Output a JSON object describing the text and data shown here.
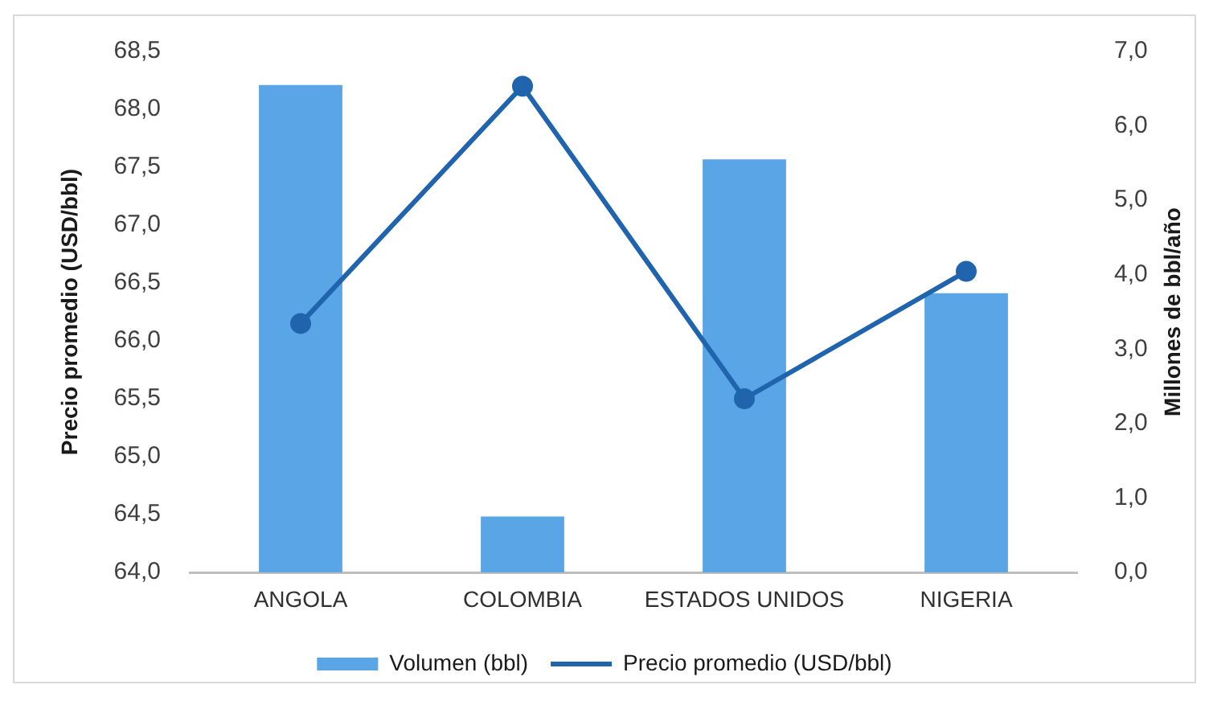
{
  "chart_data": {
    "type": "bar",
    "categories": [
      "ANGOLA",
      "COLOMBIA",
      "ESTADOS UNIDOS",
      "NIGERIA"
    ],
    "series": [
      {
        "name": "Volumen (bbl)",
        "axis": "y2",
        "color": "#5aa5e6",
        "values": [
          6.55,
          0.75,
          5.55,
          3.75
        ]
      },
      {
        "name": "Precio promedio (USD/bbl)",
        "type": "line",
        "color": "#1f64ad",
        "values": [
          66.15,
          68.2,
          65.5,
          66.6
        ]
      }
    ],
    "ylabel": "Precio promedio (USD/bbl)",
    "y2label": "Millones de bbl/año",
    "ylim": [
      64,
      68.5
    ],
    "yticks": [
      {
        "value": 64,
        "label": "64,0"
      },
      {
        "value": 64.5,
        "label": "64,5"
      },
      {
        "value": 65,
        "label": "65,0"
      },
      {
        "value": 65.5,
        "label": "65,5"
      },
      {
        "value": 66,
        "label": "66,0"
      },
      {
        "value": 66.5,
        "label": "66,5"
      },
      {
        "value": 67,
        "label": "67,0"
      },
      {
        "value": 67.5,
        "label": "67,5"
      },
      {
        "value": 68,
        "label": "68,0"
      },
      {
        "value": 68.5,
        "label": "68,5"
      }
    ],
    "y2lim": [
      0,
      7
    ],
    "y2ticks": [
      {
        "value": 0,
        "label": "0,0"
      },
      {
        "value": 1,
        "label": "1,0"
      },
      {
        "value": 2,
        "label": "2,0"
      },
      {
        "value": 3,
        "label": "3,0"
      },
      {
        "value": 4,
        "label": "4,0"
      },
      {
        "value": 5,
        "label": "5,0"
      },
      {
        "value": 6,
        "label": "6,0"
      },
      {
        "value": 7,
        "label": "7,0"
      }
    ],
    "legend": "bottom",
    "marker": "circle"
  }
}
